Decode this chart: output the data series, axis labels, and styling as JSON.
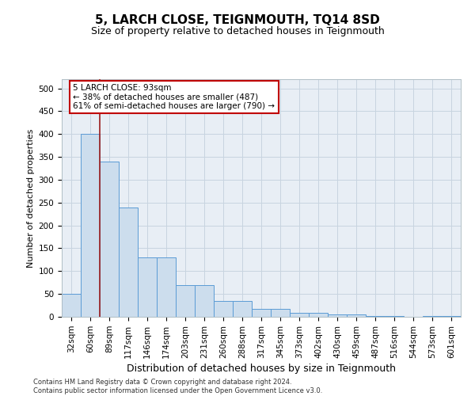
{
  "title": "5, LARCH CLOSE, TEIGNMOUTH, TQ14 8SD",
  "subtitle": "Size of property relative to detached houses in Teignmouth",
  "xlabel": "Distribution of detached houses by size in Teignmouth",
  "ylabel": "Number of detached properties",
  "footer_line1": "Contains HM Land Registry data © Crown copyright and database right 2024.",
  "footer_line2": "Contains public sector information licensed under the Open Government Licence v3.0.",
  "bar_labels": [
    "32sqm",
    "60sqm",
    "89sqm",
    "117sqm",
    "146sqm",
    "174sqm",
    "203sqm",
    "231sqm",
    "260sqm",
    "288sqm",
    "317sqm",
    "345sqm",
    "373sqm",
    "402sqm",
    "430sqm",
    "459sqm",
    "487sqm",
    "516sqm",
    "544sqm",
    "573sqm",
    "601sqm"
  ],
  "bar_values": [
    50,
    400,
    340,
    240,
    130,
    130,
    70,
    70,
    35,
    35,
    17,
    17,
    8,
    8,
    5,
    5,
    2,
    2,
    0,
    2,
    2
  ],
  "bar_color": "#ccdded",
  "bar_edge_color": "#5b9bd5",
  "vline_color": "#9b1c1c",
  "vline_index": 2,
  "annotation_text_line1": "5 LARCH CLOSE: 93sqm",
  "annotation_text_line2": "← 38% of detached houses are smaller (487)",
  "annotation_text_line3": "61% of semi-detached houses are larger (790) →",
  "annotation_box_edge_color": "#c00000",
  "ylim": [
    0,
    520
  ],
  "yticks": [
    0,
    50,
    100,
    150,
    200,
    250,
    300,
    350,
    400,
    450,
    500
  ],
  "ax_bg_color": "#e8eef5",
  "fig_bg_color": "#ffffff",
  "grid_color": "#c8d4e0",
  "title_fontsize": 11,
  "subtitle_fontsize": 9,
  "ylabel_fontsize": 8,
  "xlabel_fontsize": 9,
  "tick_fontsize": 7.5,
  "annotation_fontsize": 7.5,
  "footer_fontsize": 6
}
